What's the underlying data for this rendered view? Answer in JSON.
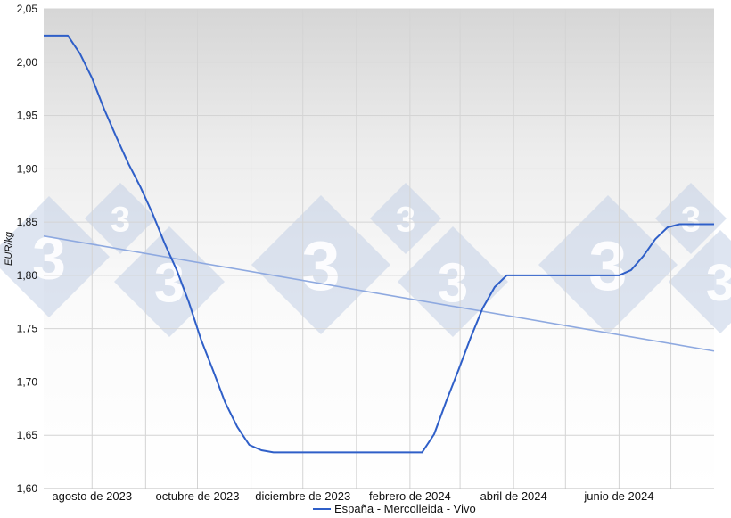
{
  "chart_data": {
    "type": "line",
    "title": "",
    "xlabel": "",
    "ylabel": "EUR/kg",
    "ylim": [
      1.6,
      2.05
    ],
    "y_ticks": [
      "1,60",
      "1,65",
      "1,70",
      "1,75",
      "1,80",
      "1,85",
      "1,90",
      "1,95",
      "2,00",
      "2,05"
    ],
    "x_ticks": [
      "agosto de 2023",
      "octubre de 2023",
      "diciembre de 2023",
      "febrero de 2024",
      "abril de 2024",
      "junio de 2024"
    ],
    "x_tick_dates": [
      "2023-08-01",
      "2023-10-01",
      "2023-12-01",
      "2024-02-01",
      "2024-04-01",
      "2024-06-01"
    ],
    "xlim": [
      "2023-07-04",
      "2024-07-26"
    ],
    "grid": true,
    "legend": "bottom",
    "colors": {
      "series": "#2f5fc8",
      "trend": "#8ea9e0",
      "grid": "#d4d4d4",
      "watermark": "#c2d0e6"
    },
    "watermark": "3",
    "series": [
      {
        "name": "España - Mercolleida - Vivo",
        "points": [
          [
            "2023-07-04",
            2.025
          ],
          [
            "2023-07-11",
            2.025
          ],
          [
            "2023-07-18",
            2.025
          ],
          [
            "2023-07-25",
            2.008
          ],
          [
            "2023-08-01",
            1.985
          ],
          [
            "2023-08-08",
            1.956
          ],
          [
            "2023-08-15",
            1.93
          ],
          [
            "2023-08-22",
            1.905
          ],
          [
            "2023-08-29",
            1.883
          ],
          [
            "2023-09-05",
            1.858
          ],
          [
            "2023-09-12",
            1.83
          ],
          [
            "2023-09-19",
            1.805
          ],
          [
            "2023-09-26",
            1.775
          ],
          [
            "2023-10-03",
            1.74
          ],
          [
            "2023-10-10",
            1.711
          ],
          [
            "2023-10-17",
            1.681
          ],
          [
            "2023-10-24",
            1.658
          ],
          [
            "2023-10-31",
            1.641
          ],
          [
            "2023-11-07",
            1.636
          ],
          [
            "2023-11-14",
            1.634
          ],
          [
            "2023-11-21",
            1.634
          ],
          [
            "2023-12-01",
            1.634
          ],
          [
            "2023-12-15",
            1.634
          ],
          [
            "2024-01-01",
            1.634
          ],
          [
            "2024-01-15",
            1.634
          ],
          [
            "2024-02-01",
            1.634
          ],
          [
            "2024-02-08",
            1.634
          ],
          [
            "2024-02-15",
            1.651
          ],
          [
            "2024-02-22",
            1.682
          ],
          [
            "2024-02-29",
            1.711
          ],
          [
            "2024-03-07",
            1.741
          ],
          [
            "2024-03-14",
            1.769
          ],
          [
            "2024-03-21",
            1.789
          ],
          [
            "2024-03-28",
            1.8
          ],
          [
            "2024-04-15",
            1.8
          ],
          [
            "2024-05-01",
            1.8
          ],
          [
            "2024-05-15",
            1.8
          ],
          [
            "2024-06-01",
            1.8
          ],
          [
            "2024-06-08",
            1.805
          ],
          [
            "2024-06-15",
            1.818
          ],
          [
            "2024-06-22",
            1.834
          ],
          [
            "2024-06-29",
            1.845
          ],
          [
            "2024-07-06",
            1.848
          ],
          [
            "2024-07-26",
            1.848
          ]
        ]
      },
      {
        "trendline": true,
        "points": [
          [
            "2023-07-04",
            1.837
          ],
          [
            "2024-07-26",
            1.729
          ]
        ]
      }
    ]
  }
}
